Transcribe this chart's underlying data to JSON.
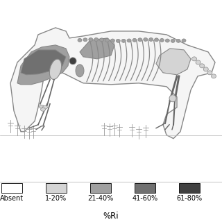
{
  "legend_labels": [
    "Absent",
    "1-20%",
    "21-40%",
    "41-60%",
    "61-80%"
  ],
  "legend_colors": [
    "#ffffff",
    "#d4d4d4",
    "#a0a0a0",
    "#707070",
    "#404040"
  ],
  "legend_border_color": "#000000",
  "xlabel": "%Ri",
  "background_color": "#ffffff",
  "fig_width": 3.2,
  "fig_height": 3.2,
  "dpi": 100,
  "label_fontsize": 7.0,
  "xlabel_fontsize": 8.5,
  "body_outline": "#888888",
  "body_fill": "#f5f5f5",
  "gray_light": "#d4d4d4",
  "gray_med": "#a0a0a0",
  "gray_dark": "#707070",
  "gray_darkest": "#404040",
  "line_color": "#666666"
}
